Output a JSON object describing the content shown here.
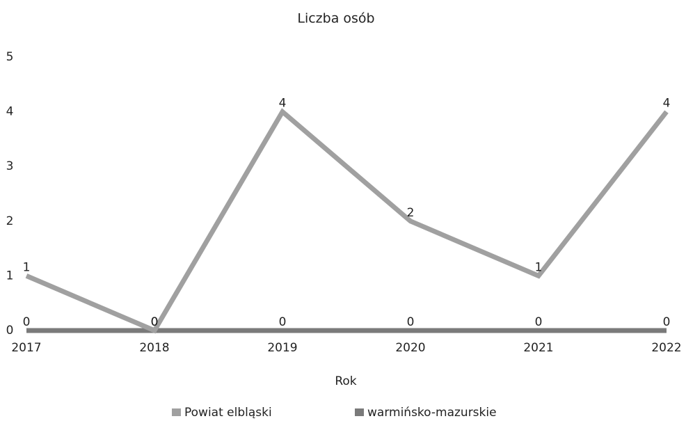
{
  "chart_data": {
    "type": "line",
    "title": "Liczba osób",
    "x_label": "Rok",
    "categories": [
      "2017",
      "2018",
      "2019",
      "2020",
      "2021",
      "2022"
    ],
    "series": [
      {
        "name": "Powiat elbląski",
        "color": "#a0a0a0",
        "values": [
          1,
          0,
          4,
          2,
          1,
          4
        ]
      },
      {
        "name": "warmińsko-mazurskie",
        "color": "#7a7a7a",
        "values": [
          0,
          0,
          0,
          0,
          0,
          0
        ]
      }
    ],
    "ylim": [
      0,
      5
    ],
    "yticks": [
      0,
      1,
      2,
      3,
      4,
      5
    ],
    "grid": false
  }
}
